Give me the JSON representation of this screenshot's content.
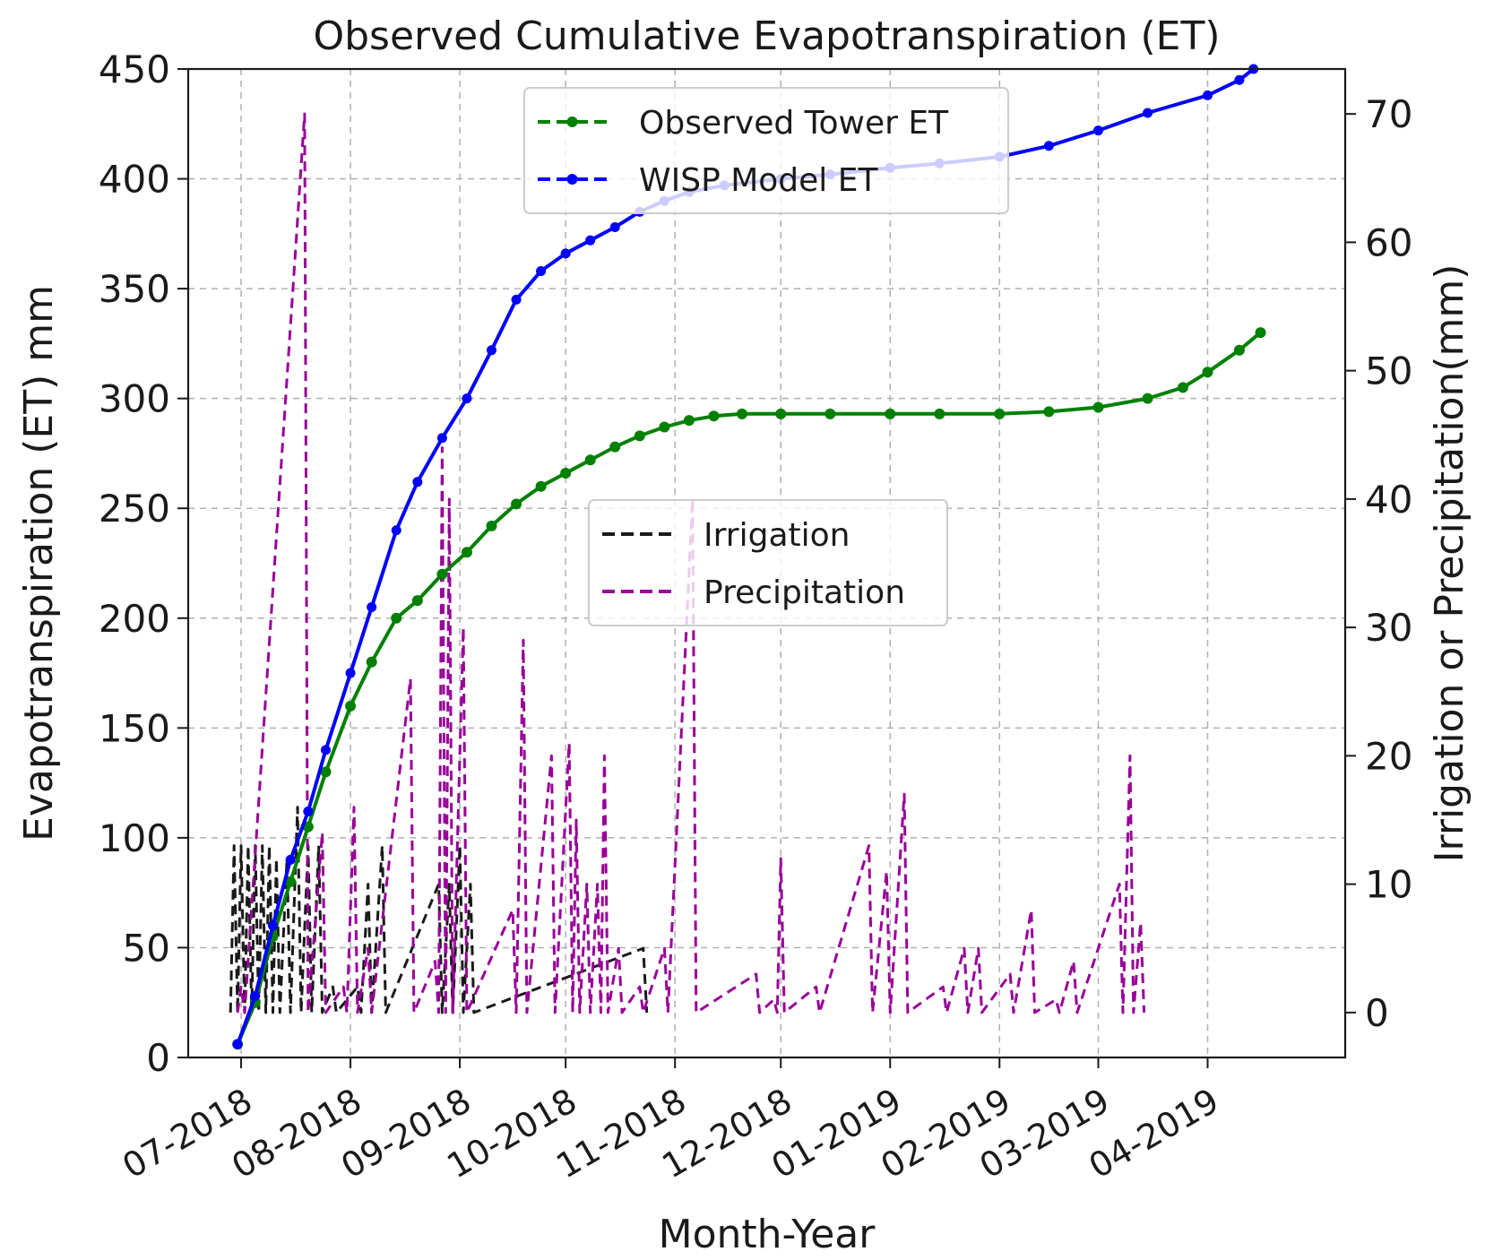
{
  "chart_data": {
    "type": "line",
    "title": "Observed Cumulative Evapotranspiration (ET)",
    "xlabel": "Month-Year",
    "ylabel": "Evapotranspiration (ET) mm",
    "y2label": "Irrigation or Precipitation(mm)",
    "x_ticks": [
      "07-2018",
      "08-2018",
      "09-2018",
      "10-2018",
      "11-2018",
      "12-2018",
      "01-2019",
      "02-2019",
      "03-2019",
      "04-2019"
    ],
    "x_range": [
      "2018-06-16",
      "2019-05-10"
    ],
    "ylim": [
      0,
      450
    ],
    "y_ticks": [
      0,
      50,
      100,
      150,
      200,
      250,
      300,
      350,
      400,
      450
    ],
    "y2lim": [
      -3.5,
      73.5
    ],
    "y2_ticks": [
      0,
      10,
      20,
      30,
      40,
      50,
      60,
      70
    ],
    "grid": true,
    "legends": [
      {
        "position": "top-center",
        "entries": [
          "Observed Tower ET",
          "WISP Model ET"
        ]
      },
      {
        "position": "center",
        "entries": [
          "Irrigation",
          "Precipitation"
        ]
      }
    ],
    "colors": {
      "observed_et": "#008000",
      "wisp_et": "#0000ff",
      "irrigation": "#1a1a1a",
      "precipitation": "#990099"
    },
    "series": [
      {
        "name": "Observed Tower ET",
        "axis": "left",
        "marker": "star",
        "points": [
          [
            "2018-06-30",
            6
          ],
          [
            "2018-07-05",
            25
          ],
          [
            "2018-07-10",
            55
          ],
          [
            "2018-07-15",
            80
          ],
          [
            "2018-07-20",
            105
          ],
          [
            "2018-07-25",
            130
          ],
          [
            "2018-08-01",
            160
          ],
          [
            "2018-08-07",
            180
          ],
          [
            "2018-08-14",
            200
          ],
          [
            "2018-08-20",
            208
          ],
          [
            "2018-08-27",
            220
          ],
          [
            "2018-09-03",
            230
          ],
          [
            "2018-09-10",
            242
          ],
          [
            "2018-09-17",
            252
          ],
          [
            "2018-09-24",
            260
          ],
          [
            "2018-10-01",
            266
          ],
          [
            "2018-10-08",
            272
          ],
          [
            "2018-10-15",
            278
          ],
          [
            "2018-10-22",
            283
          ],
          [
            "2018-10-29",
            287
          ],
          [
            "2018-11-05",
            290
          ],
          [
            "2018-11-12",
            292
          ],
          [
            "2018-11-20",
            293
          ],
          [
            "2018-12-01",
            293
          ],
          [
            "2018-12-15",
            293
          ],
          [
            "2019-01-01",
            293
          ],
          [
            "2019-01-15",
            293
          ],
          [
            "2019-02-01",
            293
          ],
          [
            "2019-02-15",
            294
          ],
          [
            "2019-03-01",
            296
          ],
          [
            "2019-03-15",
            300
          ],
          [
            "2019-03-25",
            305
          ],
          [
            "2019-04-01",
            312
          ],
          [
            "2019-04-10",
            322
          ],
          [
            "2019-04-16",
            330
          ]
        ]
      },
      {
        "name": "WISP Model ET",
        "axis": "left",
        "marker": "dot",
        "points": [
          [
            "2018-06-30",
            6
          ],
          [
            "2018-07-05",
            28
          ],
          [
            "2018-07-10",
            60
          ],
          [
            "2018-07-15",
            90
          ],
          [
            "2018-07-20",
            112
          ],
          [
            "2018-07-25",
            140
          ],
          [
            "2018-08-01",
            175
          ],
          [
            "2018-08-07",
            205
          ],
          [
            "2018-08-14",
            240
          ],
          [
            "2018-08-20",
            262
          ],
          [
            "2018-08-27",
            282
          ],
          [
            "2018-09-03",
            300
          ],
          [
            "2018-09-10",
            322
          ],
          [
            "2018-09-17",
            345
          ],
          [
            "2018-09-24",
            358
          ],
          [
            "2018-10-01",
            366
          ],
          [
            "2018-10-08",
            372
          ],
          [
            "2018-10-15",
            378
          ],
          [
            "2018-10-22",
            385
          ],
          [
            "2018-10-29",
            390
          ],
          [
            "2018-11-05",
            394
          ],
          [
            "2018-11-15",
            397
          ],
          [
            "2018-12-01",
            400
          ],
          [
            "2018-12-15",
            402
          ],
          [
            "2019-01-01",
            405
          ],
          [
            "2019-01-15",
            407
          ],
          [
            "2019-02-01",
            410
          ],
          [
            "2019-02-15",
            415
          ],
          [
            "2019-03-01",
            422
          ],
          [
            "2019-03-15",
            430
          ],
          [
            "2019-04-01",
            438
          ],
          [
            "2019-04-10",
            445
          ],
          [
            "2019-04-14",
            450
          ]
        ]
      },
      {
        "name": "Irrigation",
        "axis": "right",
        "style": "dashed",
        "points": [
          [
            "2018-06-28",
            0
          ],
          [
            "2018-06-29",
            13
          ],
          [
            "2018-06-30",
            0
          ],
          [
            "2018-07-01",
            13
          ],
          [
            "2018-07-02",
            0
          ],
          [
            "2018-07-03",
            13
          ],
          [
            "2018-07-04",
            0
          ],
          [
            "2018-07-05",
            13
          ],
          [
            "2018-07-06",
            0
          ],
          [
            "2018-07-07",
            13
          ],
          [
            "2018-07-08",
            0
          ],
          [
            "2018-07-09",
            13
          ],
          [
            "2018-07-10",
            0
          ],
          [
            "2018-07-11",
            12
          ],
          [
            "2018-07-12",
            0
          ],
          [
            "2018-07-14",
            12
          ],
          [
            "2018-07-15",
            0
          ],
          [
            "2018-07-17",
            16
          ],
          [
            "2018-07-18",
            0
          ],
          [
            "2018-07-20",
            13
          ],
          [
            "2018-07-21",
            0
          ],
          [
            "2018-07-23",
            13
          ],
          [
            "2018-07-24",
            0
          ],
          [
            "2018-07-27",
            2
          ],
          [
            "2018-07-28",
            0
          ],
          [
            "2018-08-03",
            2
          ],
          [
            "2018-08-04",
            0
          ],
          [
            "2018-08-06",
            10
          ],
          [
            "2018-08-07",
            0
          ],
          [
            "2018-08-10",
            13
          ],
          [
            "2018-08-11",
            0
          ],
          [
            "2018-08-26",
            10
          ],
          [
            "2018-08-27",
            0
          ],
          [
            "2018-08-29",
            10
          ],
          [
            "2018-08-30",
            0
          ],
          [
            "2018-09-01",
            13
          ],
          [
            "2018-09-02",
            0
          ],
          [
            "2018-09-04",
            10
          ],
          [
            "2018-09-05",
            0
          ],
          [
            "2018-10-23",
            5
          ],
          [
            "2018-10-24",
            0
          ]
        ]
      },
      {
        "name": "Precipitation",
        "axis": "right",
        "style": "dashed",
        "points": [
          [
            "2018-06-30",
            0
          ],
          [
            "2018-07-01",
            2
          ],
          [
            "2018-07-02",
            0
          ],
          [
            "2018-07-19",
            70
          ],
          [
            "2018-07-20",
            0
          ],
          [
            "2018-07-24",
            14
          ],
          [
            "2018-07-25",
            0
          ],
          [
            "2018-07-30",
            2
          ],
          [
            "2018-07-31",
            0
          ],
          [
            "2018-08-02",
            16
          ],
          [
            "2018-08-03",
            0
          ],
          [
            "2018-08-06",
            5
          ],
          [
            "2018-08-07",
            0
          ],
          [
            "2018-08-18",
            26
          ],
          [
            "2018-08-19",
            0
          ],
          [
            "2018-08-25",
            4
          ],
          [
            "2018-08-26",
            0
          ],
          [
            "2018-08-27",
            44
          ],
          [
            "2018-08-28",
            0
          ],
          [
            "2018-08-29",
            40
          ],
          [
            "2018-08-30",
            0
          ],
          [
            "2018-09-02",
            30
          ],
          [
            "2018-09-03",
            0
          ],
          [
            "2018-09-16",
            8
          ],
          [
            "2018-09-17",
            0
          ],
          [
            "2018-09-19",
            29
          ],
          [
            "2018-09-20",
            0
          ],
          [
            "2018-09-27",
            20
          ],
          [
            "2018-09-28",
            0
          ],
          [
            "2018-10-02",
            21
          ],
          [
            "2018-10-03",
            0
          ],
          [
            "2018-10-04",
            15
          ],
          [
            "2018-10-05",
            0
          ],
          [
            "2018-10-07",
            10
          ],
          [
            "2018-10-08",
            0
          ],
          [
            "2018-10-10",
            10
          ],
          [
            "2018-10-11",
            0
          ],
          [
            "2018-10-12",
            20
          ],
          [
            "2018-10-13",
            0
          ],
          [
            "2018-10-16",
            5
          ],
          [
            "2018-10-17",
            0
          ],
          [
            "2018-10-22",
            2
          ],
          [
            "2018-10-23",
            0
          ],
          [
            "2018-10-29",
            5
          ],
          [
            "2018-10-30",
            0
          ],
          [
            "2018-11-06",
            40
          ],
          [
            "2018-11-07",
            0
          ],
          [
            "2018-11-24",
            3
          ],
          [
            "2018-11-25",
            0
          ],
          [
            "2018-11-29",
            1
          ],
          [
            "2018-11-30",
            0
          ],
          [
            "2018-12-01",
            12
          ],
          [
            "2018-12-02",
            0
          ],
          [
            "2018-12-11",
            2
          ],
          [
            "2018-12-12",
            0
          ],
          [
            "2018-12-26",
            13
          ],
          [
            "2018-12-27",
            0
          ],
          [
            "2018-12-31",
            11
          ],
          [
            "2019-01-01",
            0
          ],
          [
            "2019-01-05",
            17
          ],
          [
            "2019-01-06",
            0
          ],
          [
            "2019-01-16",
            2
          ],
          [
            "2019-01-17",
            0
          ],
          [
            "2019-01-22",
            5
          ],
          [
            "2019-01-23",
            0
          ],
          [
            "2019-01-26",
            5
          ],
          [
            "2019-01-27",
            0
          ],
          [
            "2019-02-04",
            3
          ],
          [
            "2019-02-05",
            0
          ],
          [
            "2019-02-10",
            8
          ],
          [
            "2019-02-11",
            0
          ],
          [
            "2019-02-17",
            1
          ],
          [
            "2019-02-18",
            0
          ],
          [
            "2019-02-22",
            4
          ],
          [
            "2019-02-23",
            0
          ],
          [
            "2019-03-07",
            10
          ],
          [
            "2019-03-08",
            0
          ],
          [
            "2019-03-10",
            20
          ],
          [
            "2019-03-11",
            0
          ],
          [
            "2019-03-13",
            7
          ],
          [
            "2019-03-14",
            0
          ]
        ]
      }
    ]
  }
}
